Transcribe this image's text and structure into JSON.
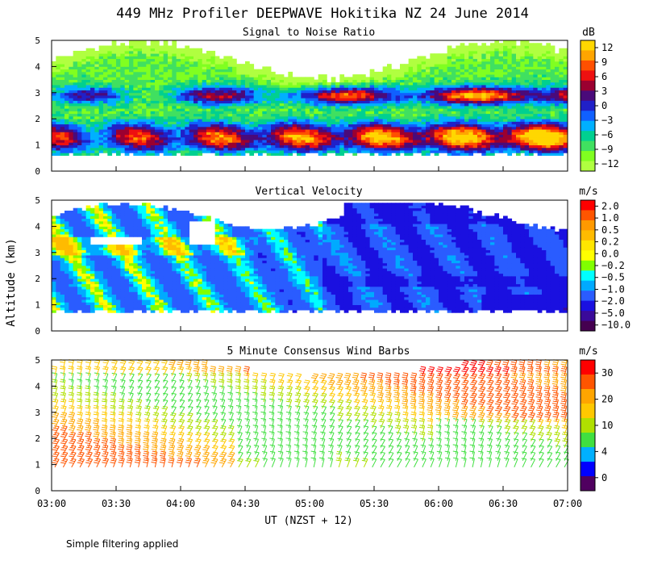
{
  "title": "449 MHz Profiler DEEPWAVE Hokitika NZ 24 June 2014",
  "footnote": "Simple filtering applied",
  "y_label": "Altitude (km)",
  "x_label": "UT (NZST + 12)",
  "chart_data": [
    {
      "type": "heatmap",
      "title": "Signal to Noise Ratio",
      "unit": "dB",
      "x": {
        "type": "time",
        "ticks": [
          "03:00",
          "03:30",
          "04:00",
          "04:30",
          "05:00",
          "05:30",
          "06:00",
          "06:30",
          "07:00"
        ],
        "range": [
          "03:00",
          "07:00"
        ]
      },
      "y": {
        "range": [
          0,
          5
        ],
        "ticks": [
          "0",
          "1",
          "2",
          "3",
          "4",
          "5"
        ]
      },
      "colorbar": {
        "levels": [
          "12",
          "9",
          "6",
          "3",
          "0",
          "−3",
          "−6",
          "−9",
          "−12"
        ],
        "colors": [
          "#ffd700",
          "#ffa500",
          "#ff5000",
          "#ee1010",
          "#9b0030",
          "#4a0a7a",
          "#2020c8",
          "#1060ff",
          "#00b0ff",
          "#00d090",
          "#40e060",
          "#80ff20",
          "#b0ff40"
        ]
      }
    },
    {
      "type": "heatmap",
      "title": "Vertical Velocity",
      "unit": "m/s",
      "x": {
        "type": "time",
        "ticks": [
          "03:00",
          "03:30",
          "04:00",
          "04:30",
          "05:00",
          "05:30",
          "06:00",
          "06:30",
          "07:00"
        ],
        "range": [
          "03:00",
          "07:00"
        ]
      },
      "y": {
        "range": [
          0,
          5
        ],
        "ticks": [
          "0",
          "1",
          "2",
          "3",
          "4",
          "5"
        ]
      },
      "colorbar": {
        "levels": [
          "2.0",
          "1.0",
          "0.5",
          "0.2",
          "0.0",
          "−0.2",
          "−0.5",
          "−1.0",
          "−2.0",
          "−5.0",
          "−10.0"
        ],
        "colors": [
          "#ff0000",
          "#ff5500",
          "#ff9900",
          "#ffbb00",
          "#ffe600",
          "#ffff00",
          "#80ff00",
          "#00ffff",
          "#00aaff",
          "#2a5cff",
          "#1a10e0",
          "#3a0a9a",
          "#450050"
        ]
      }
    },
    {
      "type": "scatter",
      "subtype": "wind-barbs",
      "title": "5 Minute Consensus Wind Barbs",
      "unit": "m/s",
      "x": {
        "type": "time",
        "ticks": [
          "03:00",
          "03:30",
          "04:00",
          "04:30",
          "05:00",
          "05:30",
          "06:00",
          "06:30",
          "07:00"
        ],
        "range": [
          "03:00",
          "07:00"
        ]
      },
      "y": {
        "range": [
          0,
          5
        ],
        "ticks": [
          "0",
          "1",
          "2",
          "3",
          "4",
          "5"
        ]
      },
      "colorbar": {
        "levels": [
          "30",
          "20",
          "10",
          "4",
          "0"
        ],
        "colors": [
          "#ff0000",
          "#ff5500",
          "#ffa500",
          "#ffc800",
          "#b0e000",
          "#40e040",
          "#00b0ff",
          "#0000ff",
          "#500060"
        ]
      }
    }
  ]
}
